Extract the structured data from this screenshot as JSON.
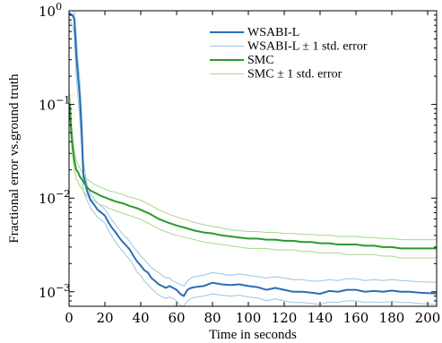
{
  "chart_data": {
    "type": "line",
    "title": "",
    "xlabel": "Time in seconds",
    "ylabel": "Fractional error vs.ground truth",
    "xlim": [
      0,
      205
    ],
    "ylim": [
      0.0007,
      1
    ],
    "y_scale": "log",
    "grid": false,
    "legend_position": "top-right",
    "x_ticks": [
      0,
      20,
      40,
      60,
      80,
      100,
      120,
      140,
      160,
      180,
      200
    ],
    "x_tick_labels": [
      "0",
      "20",
      "40",
      "60",
      "80",
      "100",
      "120",
      "140",
      "160",
      "180",
      "200"
    ],
    "y_ticks": [
      0.001,
      0.01,
      0.1,
      1
    ],
    "y_tick_labels": [
      {
        "base": "10",
        "exp": "−3"
      },
      {
        "base": "10",
        "exp": "−2"
      },
      {
        "base": "10",
        "exp": "−1"
      },
      {
        "base": "10",
        "exp": "0"
      }
    ],
    "series": [
      {
        "name": "WSABI-L",
        "color": "#2a6db5",
        "width": 2,
        "x": [
          0.5,
          1,
          2,
          3,
          4,
          5,
          6,
          7,
          8,
          10,
          12,
          14,
          16,
          18,
          20,
          22,
          24,
          26,
          28,
          30,
          32,
          34,
          36,
          38,
          40,
          42,
          44,
          46,
          48,
          50,
          52,
          54,
          56,
          58,
          60,
          62,
          64,
          66,
          68,
          70,
          75,
          80,
          85,
          90,
          95,
          100,
          105,
          110,
          115,
          120,
          125,
          130,
          135,
          140,
          145,
          150,
          155,
          160,
          165,
          170,
          175,
          180,
          185,
          190,
          195,
          200,
          205
        ],
        "y": [
          0.95,
          0.9,
          0.9,
          0.8,
          0.35,
          0.2,
          0.12,
          0.055,
          0.018,
          0.012,
          0.0095,
          0.0085,
          0.0075,
          0.007,
          0.0065,
          0.0055,
          0.0048,
          0.0043,
          0.0038,
          0.0034,
          0.0031,
          0.0028,
          0.0024,
          0.0021,
          0.0019,
          0.0017,
          0.0016,
          0.0014,
          0.0013,
          0.0012,
          0.00115,
          0.0011,
          0.00115,
          0.0011,
          0.00105,
          0.00095,
          0.0009,
          0.00105,
          0.0011,
          0.00112,
          0.00115,
          0.00125,
          0.0012,
          0.00118,
          0.0012,
          0.00115,
          0.00112,
          0.00105,
          0.0011,
          0.00105,
          0.001,
          0.001,
          0.00098,
          0.00095,
          0.00102,
          0.001,
          0.00105,
          0.00105,
          0.001,
          0.00102,
          0.001,
          0.00103,
          0.001,
          0.001,
          0.00098,
          0.00097,
          0.00096
        ]
      },
      {
        "name": "WSABI-L ± 1 std. error",
        "color": "#9cc4e0",
        "width": 1,
        "bands": [
          {
            "x": [
              0.5,
              1,
              2,
              3,
              4,
              5,
              6,
              7,
              8,
              10,
              12,
              14,
              16,
              18,
              20,
              22,
              24,
              26,
              28,
              30,
              32,
              34,
              36,
              38,
              40,
              42,
              44,
              46,
              48,
              50,
              52,
              54,
              56,
              58,
              60,
              62,
              64,
              66,
              68,
              70,
              75,
              80,
              85,
              90,
              95,
              100,
              105,
              110,
              115,
              120,
              125,
              130,
              135,
              140,
              145,
              150,
              155,
              160,
              165,
              170,
              175,
              180,
              185,
              190,
              195,
              200,
              205
            ],
            "y": [
              1.0,
              1.0,
              1.0,
              0.95,
              0.55,
              0.3,
              0.18,
              0.08,
              0.025,
              0.014,
              0.011,
              0.0098,
              0.0088,
              0.0082,
              0.0076,
              0.0066,
              0.0058,
              0.0052,
              0.0046,
              0.0041,
              0.0038,
              0.0034,
              0.003,
              0.0027,
              0.0024,
              0.0022,
              0.002,
              0.0018,
              0.0017,
              0.0016,
              0.0015,
              0.0014,
              0.0014,
              0.0013,
              0.00125,
              0.0012,
              0.00115,
              0.0013,
              0.0014,
              0.00145,
              0.0015,
              0.0016,
              0.00155,
              0.0015,
              0.00155,
              0.0015,
              0.00145,
              0.0014,
              0.00145,
              0.0014,
              0.00135,
              0.00135,
              0.0013,
              0.0013,
              0.00135,
              0.00132,
              0.00138,
              0.00138,
              0.00132,
              0.00135,
              0.00132,
              0.00135,
              0.00132,
              0.0013,
              0.00128,
              0.00127,
              0.00126
            ]
          },
          {
            "x": [
              0.5,
              1,
              2,
              3,
              4,
              5,
              6,
              7,
              8,
              10,
              12,
              14,
              16,
              18,
              20,
              22,
              24,
              26,
              28,
              30,
              32,
              34,
              36,
              38,
              40,
              42,
              44,
              46,
              48,
              50,
              52,
              54,
              56,
              58,
              60,
              62,
              64,
              66,
              68,
              70,
              75,
              80,
              85,
              90,
              95,
              100,
              105,
              110,
              115,
              120,
              125,
              130,
              135,
              140,
              145,
              150,
              155,
              160,
              165,
              170,
              175,
              180,
              185,
              190,
              195,
              200,
              205
            ],
            "y": [
              0.8,
              0.75,
              0.7,
              0.55,
              0.2,
              0.12,
              0.07,
              0.035,
              0.012,
              0.0095,
              0.0078,
              0.007,
              0.0062,
              0.0058,
              0.0054,
              0.0045,
              0.0039,
              0.0034,
              0.003,
              0.0027,
              0.0024,
              0.0022,
              0.0019,
              0.0016,
              0.0015,
              0.0013,
              0.0012,
              0.00108,
              0.001,
              0.00092,
              0.00088,
              0.00085,
              0.00088,
              0.00085,
              0.0008,
              0.00072,
              0.00068,
              0.0008,
              0.00085,
              0.00087,
              0.0009,
              0.00095,
              0.00092,
              0.0009,
              0.00092,
              0.00088,
              0.00086,
              0.0008,
              0.00084,
              0.0008,
              0.00077,
              0.00077,
              0.00075,
              0.00073,
              0.00078,
              0.00077,
              0.0008,
              0.0008,
              0.00077,
              0.00078,
              0.00077,
              0.00079,
              0.00077,
              0.00077,
              0.00075,
              0.00074,
              0.00073
            ]
          }
        ]
      },
      {
        "name": "SMC",
        "color": "#2a9a2a",
        "width": 2,
        "x": [
          0.5,
          1,
          2,
          3,
          4,
          5,
          6,
          8,
          10,
          12,
          14,
          16,
          18,
          20,
          22,
          24,
          26,
          28,
          30,
          32,
          34,
          36,
          38,
          40,
          45,
          50,
          55,
          60,
          65,
          70,
          75,
          80,
          85,
          90,
          95,
          100,
          105,
          110,
          115,
          120,
          125,
          130,
          135,
          140,
          145,
          150,
          155,
          160,
          165,
          170,
          175,
          180,
          185,
          190,
          195,
          200,
          205
        ],
        "y": [
          0.1,
          0.06,
          0.035,
          0.025,
          0.02,
          0.019,
          0.017,
          0.015,
          0.013,
          0.012,
          0.0115,
          0.011,
          0.0105,
          0.0102,
          0.0098,
          0.0095,
          0.0092,
          0.009,
          0.0088,
          0.0085,
          0.0082,
          0.008,
          0.0078,
          0.0075,
          0.0068,
          0.006,
          0.0055,
          0.0051,
          0.0048,
          0.0045,
          0.0043,
          0.0042,
          0.004,
          0.0039,
          0.0038,
          0.0037,
          0.0037,
          0.0036,
          0.0036,
          0.0035,
          0.0035,
          0.0034,
          0.0034,
          0.0033,
          0.0033,
          0.0032,
          0.0032,
          0.0032,
          0.0031,
          0.0031,
          0.003,
          0.003,
          0.0029,
          0.0029,
          0.0029,
          0.0029,
          0.0029
        ]
      },
      {
        "name": "SMC ± 1 std. error",
        "color": "#a6d98a",
        "width": 1,
        "bands": [
          {
            "x": [
              0.5,
              1,
              2,
              3,
              4,
              5,
              6,
              8,
              10,
              12,
              14,
              16,
              18,
              20,
              22,
              24,
              26,
              28,
              30,
              32,
              34,
              36,
              38,
              40,
              45,
              50,
              55,
              60,
              65,
              70,
              75,
              80,
              85,
              90,
              95,
              100,
              105,
              110,
              115,
              120,
              125,
              130,
              135,
              140,
              145,
              150,
              155,
              160,
              165,
              170,
              175,
              180,
              185,
              190,
              195,
              200,
              205
            ],
            "y": [
              0.13,
              0.075,
              0.045,
              0.032,
              0.025,
              0.023,
              0.021,
              0.018,
              0.016,
              0.015,
              0.014,
              0.0135,
              0.013,
              0.0125,
              0.012,
              0.0118,
              0.0115,
              0.0112,
              0.011,
              0.0105,
              0.0102,
              0.01,
              0.0098,
              0.0095,
              0.0085,
              0.0075,
              0.0068,
              0.0063,
              0.0059,
              0.0055,
              0.0052,
              0.005,
              0.0048,
              0.0046,
              0.0045,
              0.0044,
              0.0044,
              0.0043,
              0.0043,
              0.0042,
              0.0042,
              0.0041,
              0.0041,
              0.004,
              0.004,
              0.0039,
              0.0039,
              0.0039,
              0.0038,
              0.0038,
              0.0037,
              0.0037,
              0.0036,
              0.0036,
              0.0036,
              0.0036,
              0.0036
            ]
          },
          {
            "x": [
              0.5,
              1,
              2,
              3,
              4,
              5,
              6,
              8,
              10,
              12,
              14,
              16,
              18,
              20,
              22,
              24,
              26,
              28,
              30,
              32,
              34,
              36,
              38,
              40,
              45,
              50,
              55,
              60,
              65,
              70,
              75,
              80,
              85,
              90,
              95,
              100,
              105,
              110,
              115,
              120,
              125,
              130,
              135,
              140,
              145,
              150,
              155,
              160,
              165,
              170,
              175,
              180,
              185,
              190,
              195,
              200,
              205
            ],
            "y": [
              0.08,
              0.048,
              0.028,
              0.02,
              0.016,
              0.015,
              0.0135,
              0.012,
              0.0105,
              0.0098,
              0.0093,
              0.0088,
              0.0084,
              0.0082,
              0.0078,
              0.0076,
              0.0073,
              0.0071,
              0.0069,
              0.0067,
              0.0065,
              0.0063,
              0.0061,
              0.0059,
              0.0053,
              0.0047,
              0.0043,
              0.004,
              0.0038,
              0.0036,
              0.0034,
              0.0033,
              0.0032,
              0.0031,
              0.003,
              0.0029,
              0.0029,
              0.0029,
              0.0028,
              0.0028,
              0.0028,
              0.0027,
              0.0027,
              0.0026,
              0.0026,
              0.0026,
              0.0025,
              0.0025,
              0.0025,
              0.0025,
              0.0024,
              0.0024,
              0.0023,
              0.0023,
              0.0023,
              0.0023,
              0.0023
            ]
          }
        ]
      }
    ],
    "legend": [
      {
        "label": "WSABI-L",
        "color": "#2a6db5",
        "width": 2
      },
      {
        "label": "WSABI-L ± 1 std. error",
        "color": "#9cc4e0",
        "width": 1
      },
      {
        "label": "SMC",
        "color": "#2a9a2a",
        "width": 2
      },
      {
        "label": "SMC ± 1 std. error",
        "color": "#a6d98a",
        "width": 1
      }
    ]
  }
}
